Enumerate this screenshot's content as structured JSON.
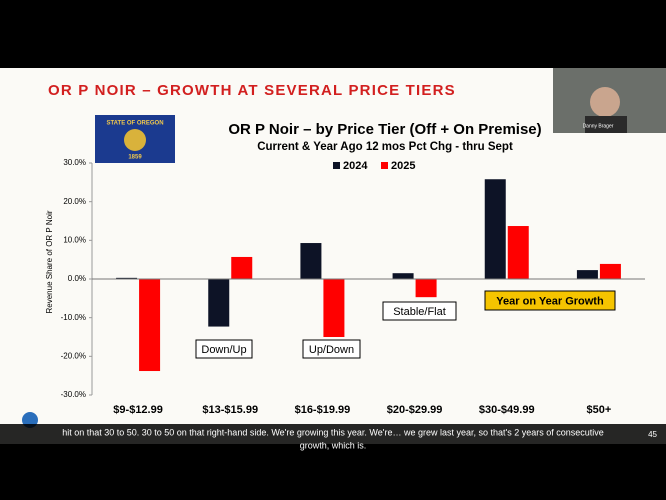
{
  "slide": {
    "heading": "OR P NOIR – GROWTH AT SEVERAL PRICE TIERS",
    "flag": {
      "line1": "STATE OF OREGON",
      "line2": "1859"
    }
  },
  "participant": {
    "name": "Danny Brager"
  },
  "caption": {
    "line1": "hit on that 30 to 50. 30 to 50 on that right-hand side. We're growing this year. We're… we grew last year, so that's 2 years of consecutive",
    "line2": "growth, which is.",
    "counter": "45"
  },
  "chart_data": {
    "type": "bar",
    "title": "OR P Noir – by Price Tier (Off + On Premise)",
    "subtitle": "Current & Year Ago 12 mos Pct Chg - thru Sept",
    "y_label": "Revenue Share of OR P Noir",
    "categories": [
      "$9-$12.99",
      "$13-$15.99",
      "$16-$19.99",
      "$20-$29.99",
      "$30-$49.99",
      "$50+"
    ],
    "series": [
      {
        "name": "2024",
        "color": "#0d1326",
        "values": [
          0.3,
          -12.3,
          9.3,
          1.5,
          25.8,
          2.3
        ]
      },
      {
        "name": "2025",
        "color": "#ff0000",
        "values": [
          -23.8,
          5.7,
          -15.0,
          -4.7,
          13.7,
          3.9
        ]
      }
    ],
    "ylim": [
      -30,
      30
    ],
    "yticks": [
      {
        "value": -30,
        "label": "-30.0%"
      },
      {
        "value": -20,
        "label": "-20.0%"
      },
      {
        "value": -10,
        "label": "-10.0%"
      },
      {
        "value": 0,
        "label": "0.0%"
      },
      {
        "value": 10,
        "label": "10.0%"
      },
      {
        "value": 20,
        "label": "20.0%"
      },
      {
        "value": 30,
        "label": "30.0%"
      }
    ],
    "legend": "top",
    "annotations": [
      "Down/Up",
      "Up/Down",
      "Stable/Flat",
      "Year on Year Growth"
    ]
  }
}
